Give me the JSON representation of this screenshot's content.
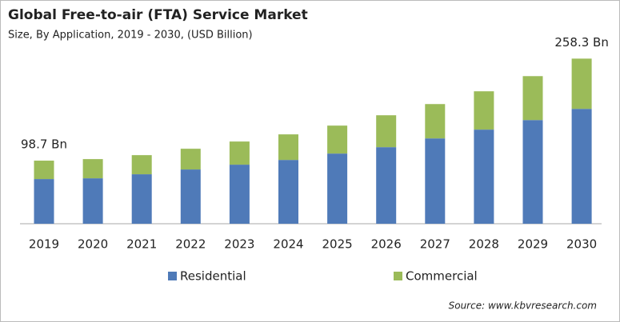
{
  "chart_data": {
    "type": "stacked-bar",
    "title": "Global Free-to-air (FTA) Service Market",
    "subtitle": "Size, By Application, 2019 - 2030, (USD Billion)",
    "source": "Source: www.kbvresearch.com",
    "categories": [
      "2019",
      "2020",
      "2021",
      "2022",
      "2023",
      "2024",
      "2025",
      "2026",
      "2027",
      "2028",
      "2029",
      "2030"
    ],
    "series": [
      {
        "name": "Residential",
        "color": "#4f7ab8",
        "values": [
          69.9,
          71.1,
          77.4,
          84.9,
          92.4,
          99.8,
          109.8,
          119.8,
          133.5,
          147.3,
          162.2,
          179.7
        ]
      },
      {
        "name": "Commercial",
        "color": "#9bbb59",
        "values": [
          28.8,
          30.0,
          29.9,
          32.4,
          36.2,
          40.0,
          43.7,
          49.9,
          53.7,
          59.9,
          68.7,
          78.6
        ]
      }
    ],
    "total_labels": [
      {
        "index": 0,
        "value": 98.7,
        "label": "98.7 Bn"
      },
      {
        "index": 11,
        "value": 258.3,
        "label": "258.3 Bn"
      }
    ],
    "ylim": [
      0,
      300
    ]
  }
}
